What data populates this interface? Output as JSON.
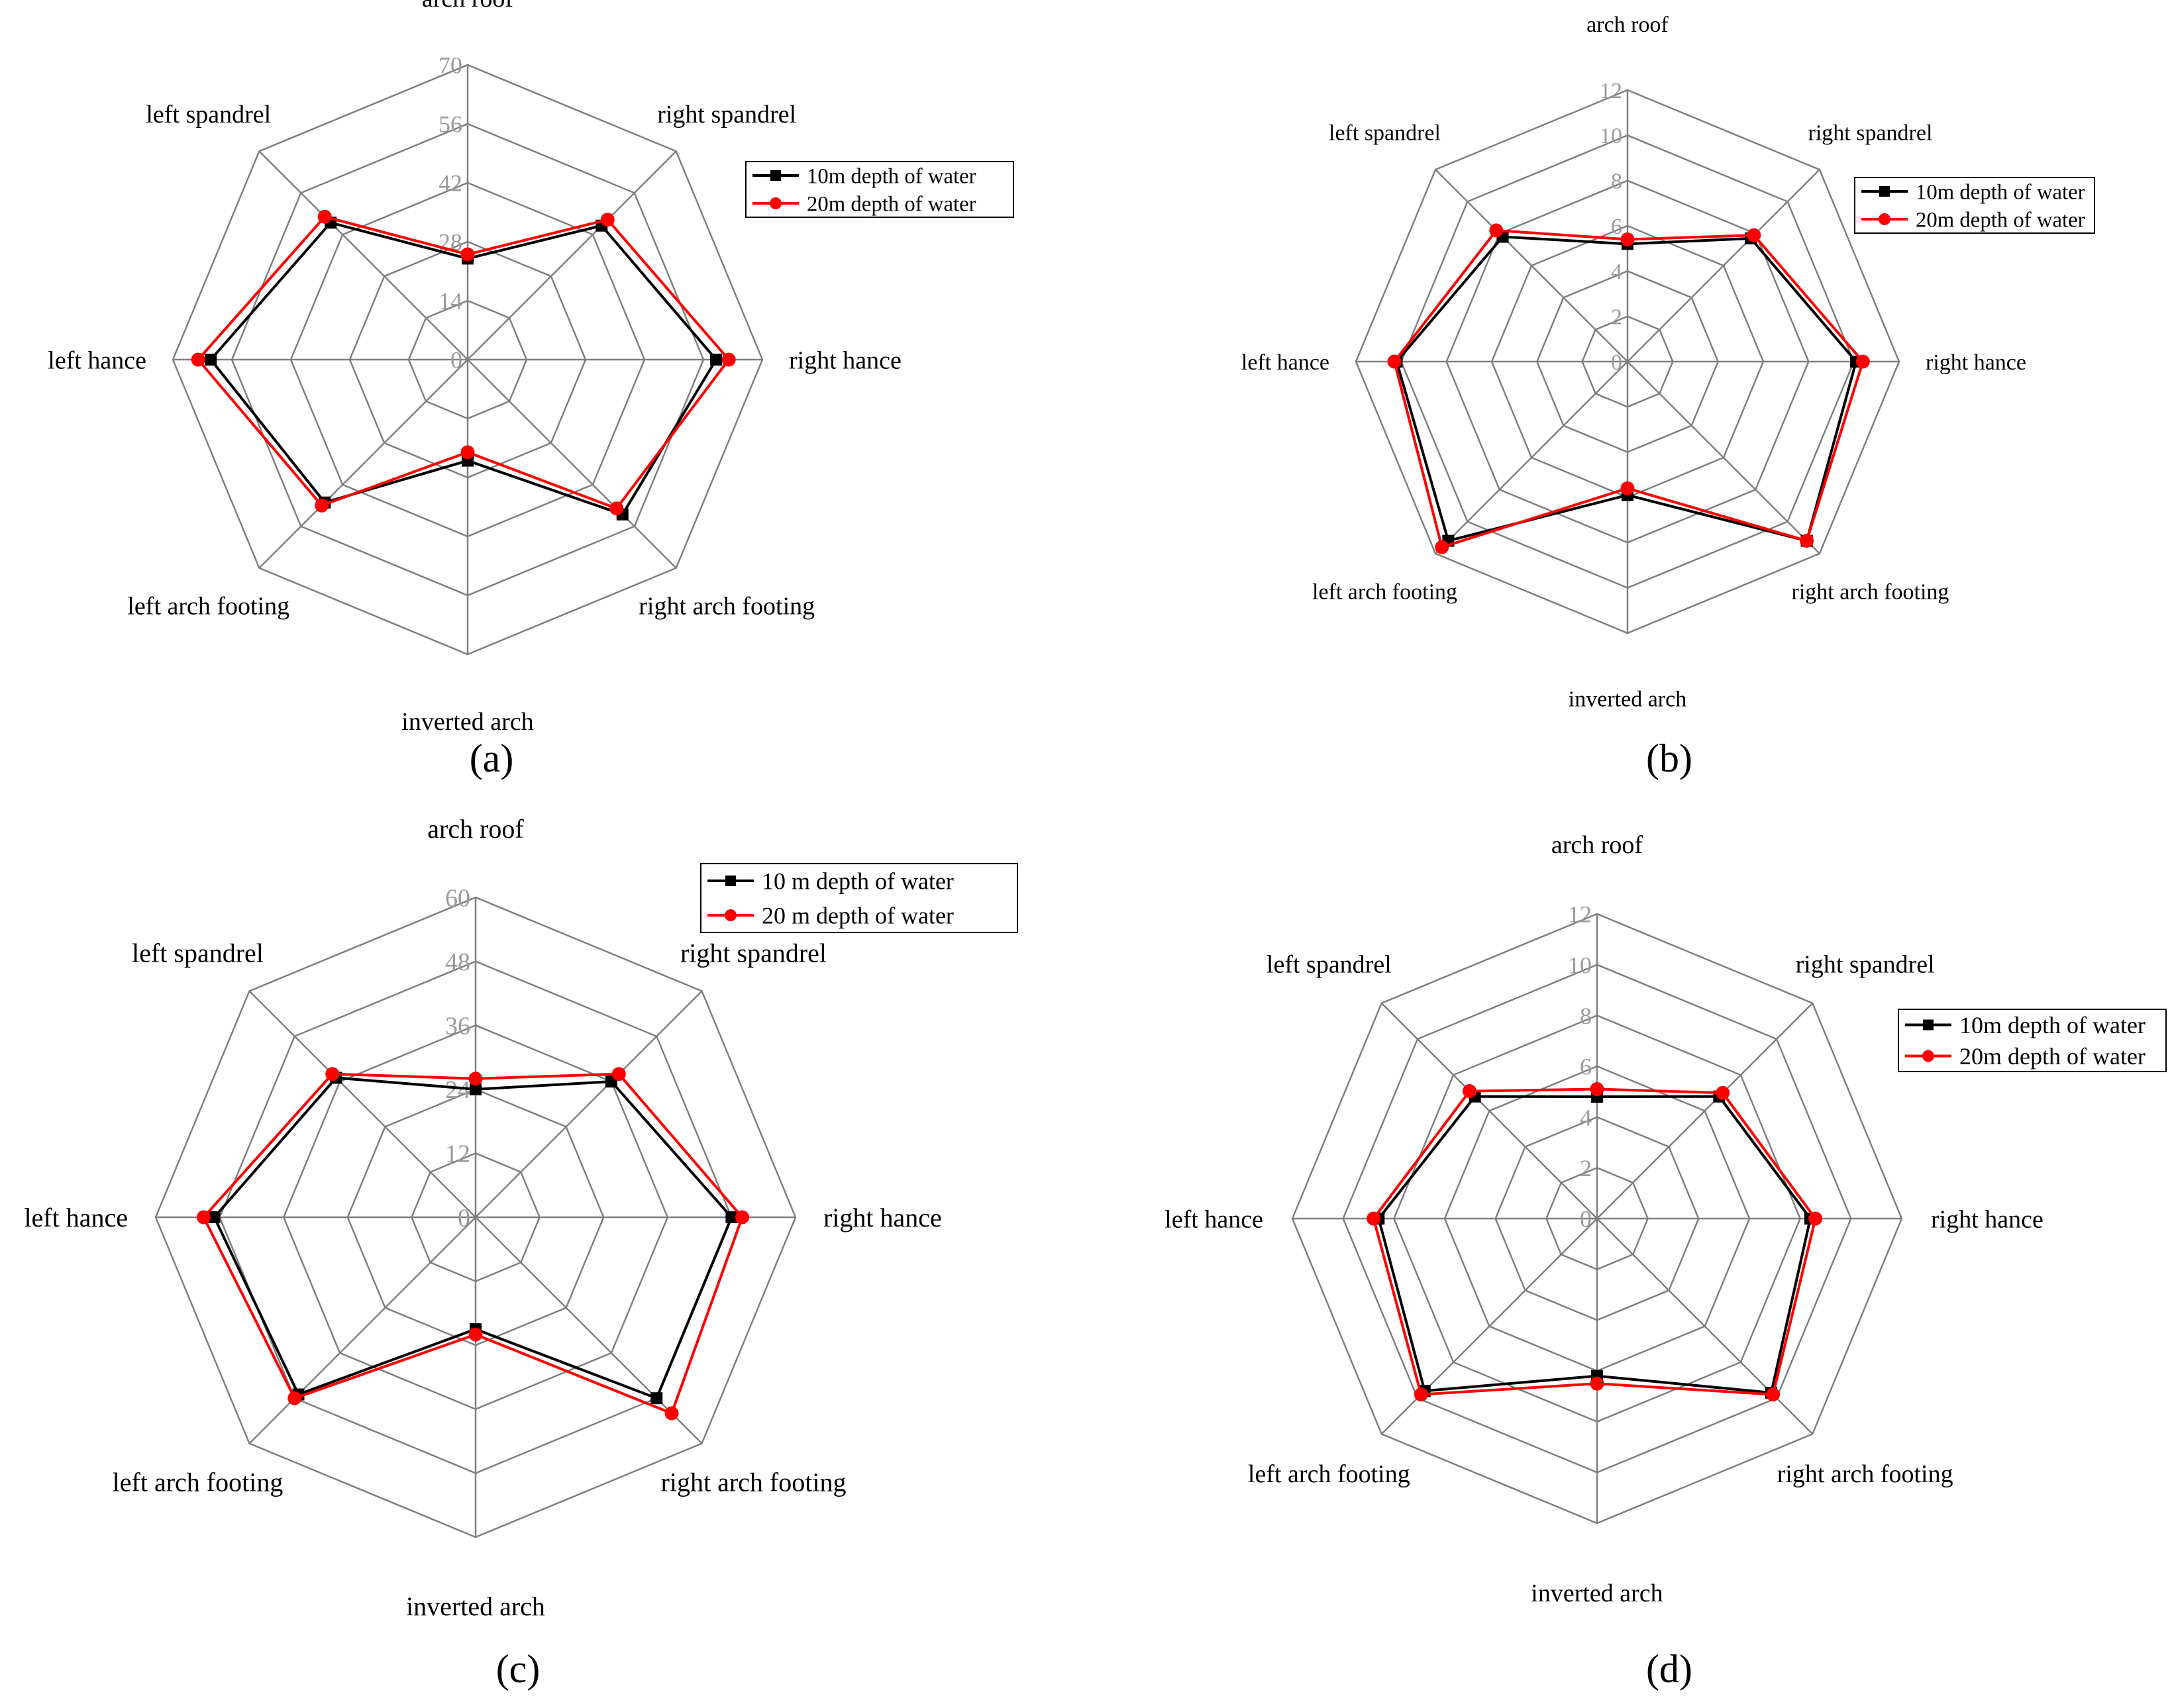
{
  "chart_data": [
    {
      "type": "radar",
      "panel_label": "(a)",
      "axes": [
        "arch roof",
        "right spandrel",
        "right hance",
        "right arch footing",
        "inverted arch",
        "left arch footing",
        "left hance",
        "left spandrel"
      ],
      "ticks": [
        "0",
        "14",
        "28",
        "42",
        "56",
        "70"
      ],
      "rmax": 70,
      "legend_position": "top-right",
      "series": [
        {
          "name": "10m depth of water",
          "color": "#000000",
          "marker": "square",
          "values": [
            24,
            45,
            59,
            52,
            24,
            48,
            61,
            46
          ]
        },
        {
          "name": "20m depth of water",
          "color": "#ff0000",
          "marker": "circle",
          "values": [
            25,
            47,
            62,
            50,
            22,
            49,
            64,
            48
          ]
        }
      ]
    },
    {
      "type": "radar",
      "panel_label": "(b)",
      "axes": [
        "arch roof",
        "right spandrel",
        "right hance",
        "right arch footing",
        "inverted arch",
        "left arch footing",
        "left hance",
        "left spandrel"
      ],
      "ticks": [
        "0",
        "2",
        "4",
        "6",
        "8",
        "10",
        "12"
      ],
      "rmax": 12,
      "legend_position": "top-right",
      "series": [
        {
          "name": "10m depth of water",
          "color": "#000000",
          "marker": "square",
          "values": [
            5.2,
            7.7,
            10.1,
            11.2,
            5.9,
            11.2,
            10.2,
            7.8
          ]
        },
        {
          "name": "20m depth of water",
          "color": "#ff0000",
          "marker": "circle",
          "values": [
            5.4,
            7.9,
            10.4,
            11.2,
            5.6,
            11.6,
            10.3,
            8.2
          ]
        }
      ]
    },
    {
      "type": "radar",
      "panel_label": "(c)",
      "axes": [
        "arch roof",
        "right spandrel",
        "right hance",
        "right arch footing",
        "inverted arch",
        "left arch footing",
        "left hance",
        "left spandrel"
      ],
      "ticks": [
        "0",
        "12",
        "24",
        "36",
        "48",
        "60"
      ],
      "rmax": 60,
      "legend_position": "top-right",
      "series": [
        {
          "name": "10 m depth of water",
          "color": "#000000",
          "marker": "square",
          "values": [
            24,
            36,
            48,
            48,
            21,
            47,
            49,
            37
          ]
        },
        {
          "name": "20 m depth of water",
          "color": "#ff0000",
          "marker": "circle",
          "values": [
            26,
            38,
            50,
            52,
            22,
            48,
            51,
            38
          ]
        }
      ]
    },
    {
      "type": "radar",
      "panel_label": "(d)",
      "axes": [
        "arch roof",
        "right spandrel",
        "right hance",
        "right arch footing",
        "inverted arch",
        "left arch footing",
        "left hance",
        "left spandrel"
      ],
      "ticks": [
        "0",
        "2",
        "4",
        "6",
        "8",
        "10",
        "12"
      ],
      "rmax": 12,
      "legend_position": "top-right",
      "series": [
        {
          "name": "10m depth of water",
          "color": "#000000",
          "marker": "square",
          "values": [
            4.8,
            6.8,
            8.4,
            9.7,
            6.2,
            9.6,
            8.6,
            6.8
          ]
        },
        {
          "name": "20m depth of water",
          "color": "#ff0000",
          "marker": "circle",
          "values": [
            5.1,
            7.0,
            8.6,
            9.8,
            6.5,
            9.8,
            8.8,
            7.1
          ]
        }
      ]
    }
  ]
}
